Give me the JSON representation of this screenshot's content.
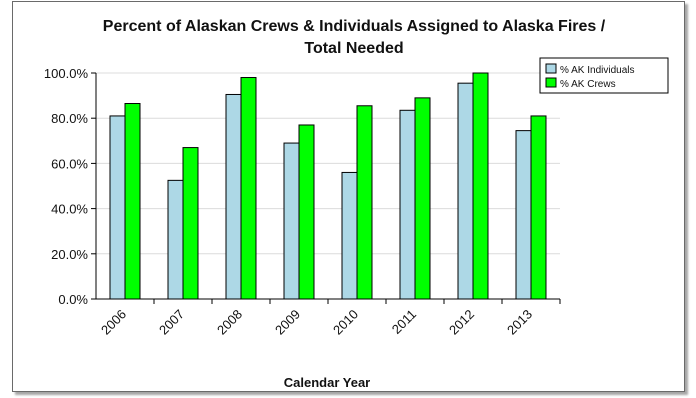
{
  "chart_data": {
    "type": "bar",
    "title_line1": "Percent of Alaskan Crews & Individuals Assigned to Alaska Fires /",
    "title_line2": "Total Needed",
    "xlabel": "Calendar Year",
    "ylabel": "",
    "categories": [
      "2006",
      "2007",
      "2008",
      "2009",
      "2010",
      "2011",
      "2012",
      "2013"
    ],
    "series": [
      {
        "name": "% AK Individuals",
        "color": "#add8e6",
        "values": [
          81,
          52.5,
          90.5,
          69,
          56,
          83.5,
          95.5,
          74.5
        ]
      },
      {
        "name": "% AK Crews",
        "color": "#00ff00",
        "values": [
          86.5,
          67,
          98,
          77,
          85.5,
          89,
          100,
          81
        ]
      }
    ],
    "ylim": [
      0,
      100
    ],
    "yticks": [
      "0.0%",
      "20.0%",
      "40.0%",
      "60.0%",
      "80.0%",
      "100.0%"
    ],
    "grid": true,
    "legend_position": "top-right"
  }
}
